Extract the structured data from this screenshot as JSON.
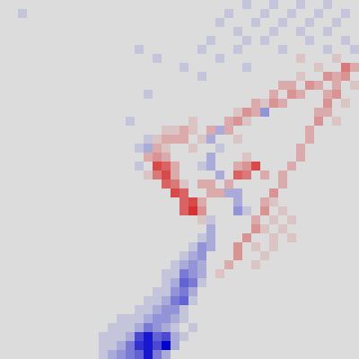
{
  "chart_data": {
    "type": "heatmap",
    "tick_labels": false,
    "color_range": [
      -9,
      9
    ],
    "cells": [
      [
        0,
        0,
        0,
        0,
        0,
        0,
        0,
        0,
        0,
        0,
        0,
        0,
        0,
        0,
        0,
        0,
        0,
        0,
        0,
        0,
        0,
        0,
        0,
        0,
        0,
        0,
        0,
        -1,
        0,
        0,
        -1,
        0,
        0,
        -1,
        0,
        0,
        -1,
        0,
        0,
        0
      ],
      [
        0,
        0,
        -1,
        0,
        0,
        0,
        0,
        0,
        0,
        0,
        0,
        0,
        0,
        0,
        0,
        0,
        0,
        0,
        0,
        0,
        0,
        0,
        0,
        0,
        0,
        -1,
        0,
        0,
        0,
        -1,
        0,
        0,
        -1,
        0,
        0,
        -1,
        0,
        0,
        -1,
        0
      ],
      [
        0,
        0,
        0,
        0,
        0,
        0,
        0,
        0,
        0,
        0,
        0,
        0,
        0,
        0,
        0,
        0,
        0,
        0,
        0,
        0,
        0,
        0,
        0,
        0,
        -1,
        0,
        0,
        0,
        -1,
        0,
        0,
        -1,
        0,
        0,
        -1,
        0,
        0,
        -1,
        0,
        0
      ],
      [
        0,
        0,
        0,
        0,
        0,
        0,
        0,
        0,
        0,
        0,
        0,
        0,
        0,
        0,
        0,
        0,
        0,
        0,
        0,
        0,
        0,
        0,
        0,
        0,
        0,
        0,
        -1,
        0,
        0,
        0,
        -1,
        0,
        0,
        -1,
        0,
        0,
        -1,
        0,
        0,
        0
      ],
      [
        0,
        0,
        0,
        0,
        0,
        0,
        0,
        0,
        0,
        0,
        0,
        0,
        0,
        0,
        0,
        0,
        0,
        0,
        0,
        0,
        0,
        0,
        0,
        -1,
        0,
        0,
        0,
        -1,
        0,
        -1,
        0,
        0,
        0,
        0,
        -1,
        0,
        0,
        0,
        -1,
        0
      ],
      [
        0,
        0,
        0,
        0,
        0,
        0,
        0,
        0,
        0,
        0,
        0,
        0,
        0,
        0,
        0,
        -1,
        0,
        0,
        0,
        0,
        0,
        0,
        -1,
        0,
        0,
        0,
        -1,
        0,
        0,
        0,
        0,
        -1,
        0,
        0,
        0,
        0,
        -1,
        0,
        0,
        -1
      ],
      [
        0,
        0,
        0,
        0,
        0,
        0,
        0,
        0,
        0,
        0,
        0,
        0,
        0,
        0,
        0,
        0,
        0,
        -1,
        0,
        0,
        0,
        0,
        0,
        0,
        -1,
        0,
        0,
        0,
        0,
        0,
        0,
        0,
        0,
        1,
        0,
        0,
        0,
        1,
        0,
        0
      ],
      [
        0,
        0,
        0,
        0,
        0,
        0,
        0,
        0,
        0,
        0,
        0,
        0,
        0,
        0,
        0,
        0,
        0,
        0,
        0,
        0,
        -1,
        0,
        0,
        0,
        0,
        0,
        0,
        -1,
        0,
        0,
        0,
        0,
        0,
        0,
        0,
        1,
        0,
        0,
        4,
        2
      ],
      [
        0,
        0,
        0,
        0,
        0,
        0,
        0,
        0,
        0,
        0,
        0,
        0,
        0,
        0,
        0,
        0,
        0,
        0,
        0,
        0,
        0,
        0,
        -1,
        0,
        0,
        0,
        0,
        0,
        0,
        0,
        0,
        0,
        0,
        1,
        0,
        0,
        3,
        2,
        3,
        0
      ],
      [
        0,
        0,
        0,
        0,
        0,
        0,
        0,
        0,
        0,
        0,
        0,
        0,
        0,
        0,
        0,
        0,
        0,
        0,
        0,
        0,
        0,
        0,
        0,
        0,
        0,
        0,
        0,
        0,
        0,
        0,
        0,
        2,
        2,
        0,
        3,
        2,
        0,
        2,
        0,
        1
      ],
      [
        0,
        0,
        0,
        0,
        0,
        0,
        0,
        0,
        0,
        0,
        0,
        0,
        0,
        0,
        0,
        0,
        -1,
        0,
        0,
        0,
        0,
        0,
        0,
        0,
        0,
        0,
        0,
        0,
        0,
        0,
        2,
        0,
        3,
        2,
        0,
        0,
        2,
        3,
        0,
        0
      ],
      [
        0,
        0,
        0,
        0,
        0,
        0,
        0,
        0,
        0,
        0,
        0,
        0,
        0,
        0,
        0,
        0,
        0,
        0,
        0,
        0,
        0,
        0,
        0,
        0,
        0,
        0,
        0,
        0,
        2,
        1,
        3,
        2,
        0,
        0,
        0,
        0,
        3,
        0,
        1,
        0
      ],
      [
        0,
        0,
        0,
        0,
        0,
        0,
        0,
        0,
        0,
        0,
        0,
        0,
        0,
        0,
        0,
        0,
        0,
        0,
        0,
        0,
        0,
        0,
        0,
        0,
        0,
        0,
        1,
        3,
        2,
        -3,
        0,
        0,
        0,
        0,
        0,
        2,
        2,
        0,
        0,
        0
      ],
      [
        0,
        0,
        0,
        0,
        0,
        0,
        0,
        0,
        0,
        0,
        0,
        0,
        0,
        0,
        -1,
        0,
        0,
        0,
        0,
        0,
        0,
        1,
        0,
        0,
        0,
        2,
        3,
        1,
        0,
        0,
        0,
        0,
        0,
        0,
        0,
        3,
        0,
        1,
        0,
        0
      ],
      [
        0,
        0,
        0,
        0,
        0,
        0,
        0,
        0,
        0,
        0,
        0,
        0,
        0,
        0,
        0,
        0,
        0,
        0,
        1,
        1,
        2,
        1,
        0,
        2,
        -2,
        2,
        0,
        0,
        0,
        0,
        0,
        0,
        0,
        0,
        2,
        0,
        0,
        0,
        0,
        0
      ],
      [
        0,
        0,
        0,
        0,
        0,
        0,
        0,
        0,
        0,
        0,
        0,
        0,
        0,
        0,
        0,
        0,
        -1,
        1,
        2,
        2,
        2,
        0,
        1,
        -2,
        0,
        0,
        1,
        0,
        0,
        0,
        0,
        0,
        0,
        0,
        2,
        0,
        0,
        0,
        0,
        0
      ],
      [
        0,
        0,
        0,
        0,
        0,
        0,
        0,
        0,
        0,
        0,
        0,
        0,
        0,
        0,
        0,
        -1,
        -2,
        2,
        1,
        0,
        0,
        1,
        0,
        0,
        -1,
        0,
        0,
        0,
        0,
        0,
        0,
        0,
        0,
        2,
        0,
        0,
        0,
        0,
        0,
        0
      ],
      [
        0,
        0,
        0,
        0,
        0,
        0,
        0,
        0,
        0,
        0,
        0,
        0,
        0,
        0,
        0,
        0,
        2,
        3,
        2,
        0,
        0,
        0,
        0,
        -2,
        0,
        0,
        0,
        1,
        0,
        0,
        0,
        0,
        0,
        2,
        0,
        0,
        0,
        0,
        0,
        0
      ],
      [
        0,
        0,
        0,
        0,
        0,
        0,
        0,
        0,
        0,
        0,
        0,
        0,
        0,
        0,
        0,
        -1,
        0,
        6,
        5,
        2,
        0,
        0,
        -1,
        -2,
        0,
        0,
        2,
        3,
        6,
        0,
        0,
        0,
        2,
        0,
        0,
        0,
        0,
        0,
        0,
        0
      ],
      [
        0,
        0,
        0,
        0,
        0,
        0,
        0,
        0,
        0,
        0,
        0,
        0,
        0,
        0,
        0,
        0,
        1,
        4,
        6,
        2,
        0,
        0,
        0,
        0,
        -2,
        0,
        5,
        4,
        0,
        2,
        0,
        2,
        0,
        0,
        0,
        0,
        0,
        0,
        0,
        0
      ],
      [
        0,
        0,
        0,
        0,
        0,
        0,
        0,
        0,
        0,
        0,
        0,
        0,
        0,
        0,
        0,
        0,
        0,
        0,
        5,
        4,
        1,
        0,
        2,
        2,
        0,
        2,
        0,
        0,
        0,
        0,
        0,
        2,
        0,
        0,
        0,
        0,
        0,
        0,
        0,
        0
      ],
      [
        0,
        0,
        0,
        0,
        0,
        0,
        0,
        0,
        0,
        0,
        0,
        0,
        0,
        0,
        0,
        0,
        0,
        0,
        0,
        6,
        5,
        0,
        0,
        2,
        2,
        -2,
        -2,
        0,
        0,
        0,
        3,
        0,
        0,
        0,
        0,
        0,
        0,
        0,
        0,
        0
      ],
      [
        0,
        0,
        0,
        0,
        0,
        0,
        0,
        0,
        0,
        0,
        0,
        0,
        0,
        0,
        0,
        0,
        0,
        0,
        0,
        0,
        5,
        6,
        2,
        0,
        0,
        0,
        -2,
        0,
        0,
        2,
        1,
        0,
        0,
        0,
        0,
        0,
        0,
        0,
        0,
        0
      ],
      [
        0,
        0,
        0,
        0,
        0,
        0,
        0,
        0,
        0,
        0,
        0,
        0,
        0,
        0,
        0,
        0,
        0,
        0,
        0,
        0,
        5,
        7,
        3,
        0,
        0,
        0,
        -3,
        -1,
        0,
        3,
        0,
        1,
        0,
        0,
        0,
        0,
        0,
        0,
        0,
        0
      ],
      [
        0,
        0,
        0,
        0,
        0,
        0,
        0,
        0,
        0,
        0,
        0,
        0,
        0,
        0,
        0,
        0,
        0,
        0,
        0,
        0,
        0,
        0,
        1,
        -1,
        0,
        0,
        0,
        0,
        2,
        0,
        1,
        0,
        1,
        0,
        0,
        0,
        0,
        0,
        0,
        0
      ],
      [
        0,
        0,
        0,
        0,
        0,
        0,
        0,
        0,
        0,
        0,
        0,
        0,
        0,
        0,
        0,
        0,
        0,
        0,
        0,
        0,
        0,
        0,
        0,
        -2,
        0,
        0,
        0,
        0,
        3,
        1,
        0,
        1,
        0,
        0,
        0,
        0,
        0,
        0,
        0,
        0
      ],
      [
        0,
        0,
        0,
        0,
        0,
        0,
        0,
        0,
        0,
        0,
        0,
        0,
        0,
        0,
        0,
        0,
        0,
        0,
        0,
        0,
        0,
        0,
        -1,
        -2,
        0,
        0,
        0,
        3,
        0,
        0,
        1,
        0,
        1,
        0,
        0,
        0,
        0,
        0,
        0,
        0
      ],
      [
        0,
        0,
        0,
        0,
        0,
        0,
        0,
        0,
        0,
        0,
        0,
        0,
        0,
        0,
        0,
        0,
        0,
        0,
        0,
        0,
        0,
        -1,
        -3,
        -2,
        0,
        0,
        3,
        0,
        1,
        0,
        1,
        0,
        0,
        0,
        0,
        0,
        0,
        0,
        0,
        0
      ],
      [
        0,
        0,
        0,
        0,
        0,
        0,
        0,
        0,
        0,
        0,
        0,
        0,
        0,
        0,
        0,
        0,
        0,
        0,
        0,
        0,
        -1,
        -2,
        -3,
        0,
        0,
        0,
        3,
        0,
        0,
        1,
        0,
        0,
        0,
        0,
        0,
        0,
        0,
        0,
        0,
        0
      ],
      [
        0,
        0,
        0,
        0,
        0,
        0,
        0,
        0,
        0,
        0,
        0,
        0,
        0,
        0,
        0,
        0,
        0,
        0,
        0,
        -1,
        -2,
        -3,
        -2,
        0,
        0,
        2,
        0,
        0,
        1,
        0,
        0,
        0,
        0,
        0,
        0,
        0,
        0,
        0,
        0,
        0
      ],
      [
        0,
        0,
        0,
        0,
        0,
        0,
        0,
        0,
        0,
        0,
        0,
        0,
        0,
        0,
        0,
        0,
        0,
        0,
        -1,
        -1,
        -4,
        -3,
        -2,
        0,
        1,
        0,
        0,
        0,
        0,
        0,
        0,
        0,
        0,
        0,
        0,
        0,
        0,
        0,
        0,
        0
      ],
      [
        0,
        0,
        0,
        0,
        0,
        0,
        0,
        0,
        0,
        0,
        0,
        0,
        0,
        0,
        0,
        0,
        0,
        0,
        -1,
        -2,
        -5,
        -4,
        -1,
        0,
        0,
        0,
        0,
        0,
        0,
        0,
        0,
        0,
        0,
        0,
        0,
        0,
        0,
        0,
        0,
        0
      ],
      [
        0,
        0,
        0,
        0,
        0,
        0,
        0,
        0,
        0,
        0,
        0,
        0,
        0,
        0,
        0,
        0,
        0,
        -1,
        -1,
        -3,
        -4,
        -2,
        0,
        0,
        0,
        0,
        0,
        0,
        0,
        0,
        0,
        0,
        0,
        0,
        0,
        0,
        0,
        0,
        0,
        0
      ],
      [
        0,
        0,
        0,
        0,
        0,
        0,
        0,
        0,
        0,
        0,
        0,
        0,
        0,
        0,
        0,
        0,
        -1,
        -1,
        -2,
        -4,
        -5,
        -1,
        0,
        0,
        0,
        0,
        0,
        0,
        0,
        0,
        0,
        0,
        0,
        0,
        0,
        0,
        0,
        0,
        0,
        0
      ],
      [
        0,
        0,
        0,
        0,
        0,
        0,
        0,
        0,
        0,
        0,
        0,
        0,
        0,
        0,
        0,
        -1,
        -1,
        -2,
        -3,
        -3,
        -1,
        0,
        0,
        0,
        0,
        0,
        0,
        0,
        0,
        0,
        0,
        0,
        0,
        0,
        0,
        0,
        0,
        0,
        0,
        0
      ],
      [
        0,
        0,
        0,
        0,
        0,
        0,
        0,
        0,
        0,
        0,
        0,
        0,
        0,
        -1,
        -1,
        -1,
        -2,
        -3,
        -3,
        -2,
        -1,
        0,
        0,
        0,
        0,
        0,
        0,
        0,
        0,
        0,
        0,
        0,
        0,
        0,
        0,
        0,
        0,
        0,
        0,
        0
      ],
      [
        0,
        0,
        0,
        0,
        0,
        0,
        0,
        0,
        0,
        0,
        0,
        0,
        -1,
        -1,
        -1,
        -2,
        -4,
        -3,
        -2,
        -1,
        0,
        -1,
        0,
        0,
        0,
        0,
        0,
        0,
        0,
        0,
        0,
        0,
        0,
        0,
        0,
        0,
        0,
        0,
        0,
        0
      ],
      [
        0,
        0,
        0,
        0,
        0,
        0,
        0,
        0,
        0,
        0,
        0,
        -1,
        -1,
        -1,
        -2,
        -6,
        -8,
        -5,
        -6,
        -2,
        -1,
        0,
        0,
        0,
        0,
        0,
        0,
        0,
        0,
        0,
        0,
        0,
        0,
        0,
        0,
        0,
        0,
        0,
        0,
        0
      ],
      [
        0,
        0,
        0,
        0,
        0,
        0,
        0,
        0,
        0,
        0,
        0,
        -1,
        -1,
        -2,
        -4,
        -7,
        -8,
        -6,
        -9,
        -2,
        0,
        0,
        0,
        0,
        0,
        0,
        0,
        0,
        0,
        0,
        0,
        0,
        0,
        0,
        0,
        0,
        0,
        0,
        0,
        0
      ],
      [
        0,
        0,
        0,
        0,
        0,
        0,
        0,
        0,
        0,
        0,
        0,
        -1,
        -2,
        -3,
        -4,
        -5,
        -8,
        -4,
        -2,
        0,
        0,
        0,
        0,
        0,
        0,
        0,
        0,
        0,
        0,
        0,
        0,
        0,
        0,
        0,
        0,
        0,
        0,
        0,
        0,
        0
      ]
    ]
  }
}
